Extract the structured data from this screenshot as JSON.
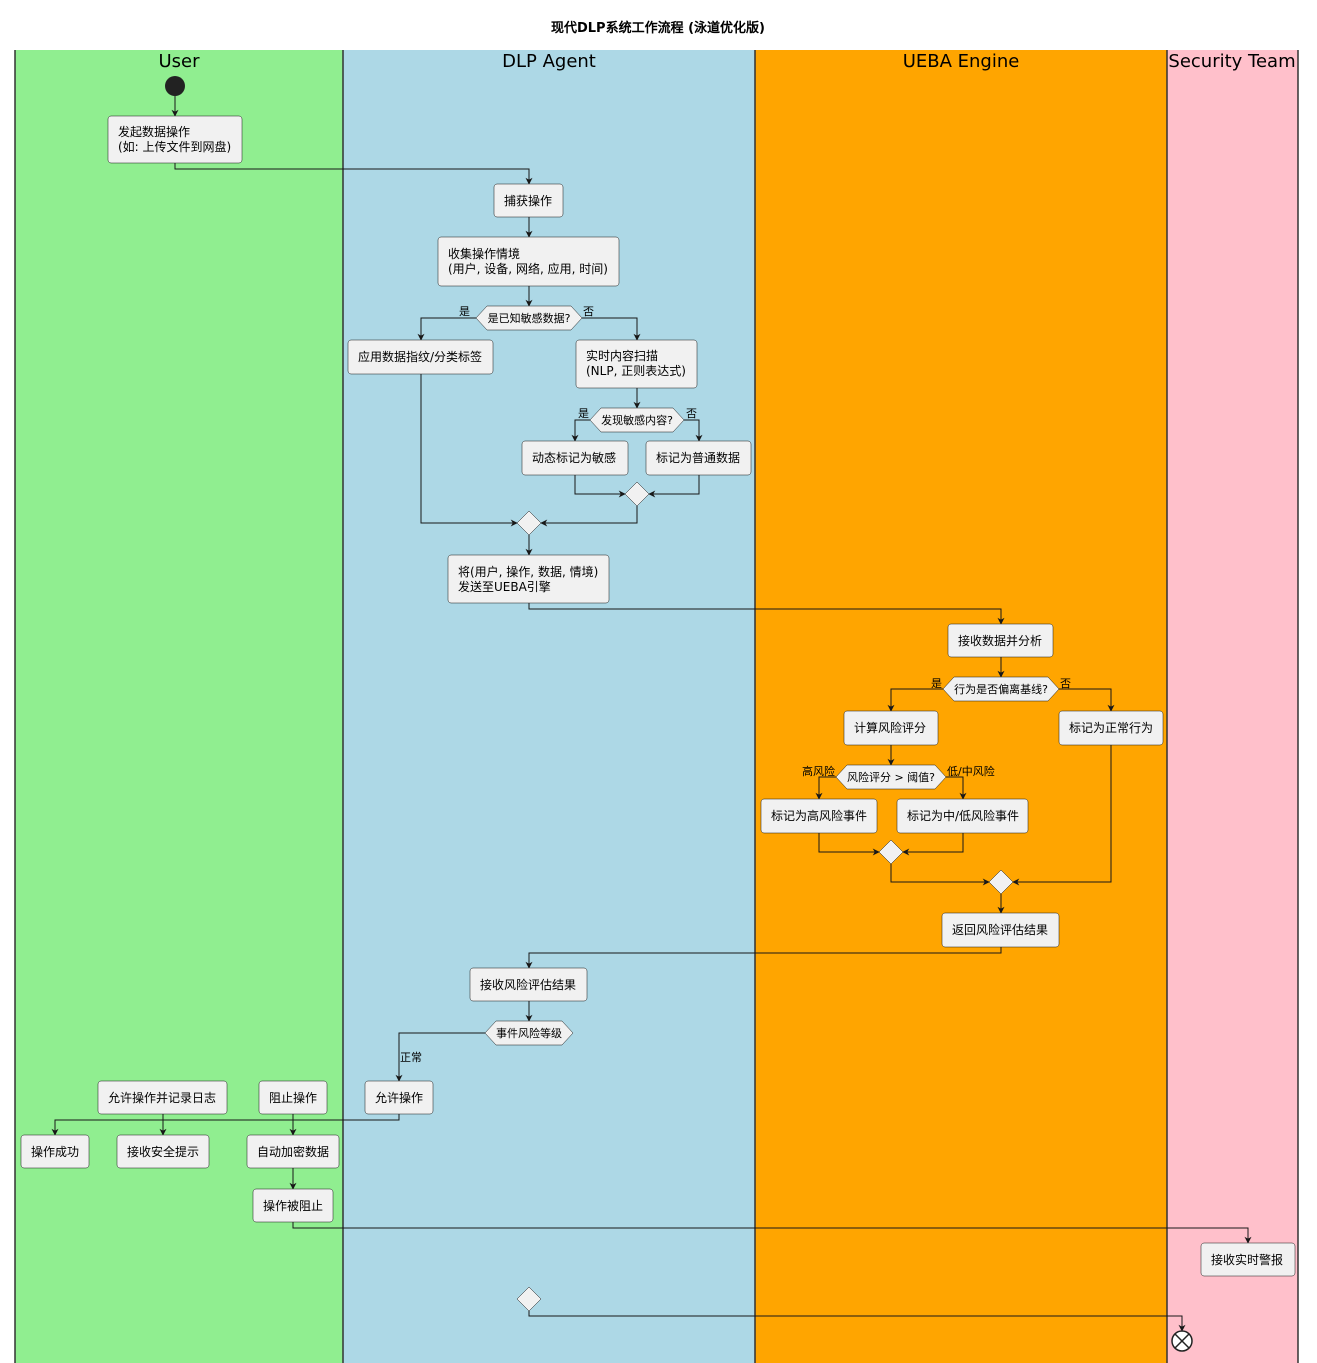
{
  "title": "现代DLP系统工作流程 (泳道优化版)",
  "lanes": [
    {
      "name": "User",
      "color": "#90EE90"
    },
    {
      "name": "DLP Agent",
      "color": "#ADD8E6"
    },
    {
      "name": "UEBA Engine",
      "color": "#FFA500"
    },
    {
      "name": "Security Team",
      "color": "#FFC0CB"
    }
  ],
  "nodes": {
    "initiate": [
      "发起数据操作",
      "(如: 上传文件到网盘)"
    ],
    "capture": [
      "捕获操作"
    ],
    "collect": [
      "收集操作情境",
      "(用户, 设备, 网络, 应用, 时间)"
    ],
    "fingerprint": [
      "应用数据指纹/分类标签"
    ],
    "scan": [
      "实时内容扫描",
      "(NLP, 正则表达式)"
    ],
    "mark_sensitive": [
      "动态标记为敏感"
    ],
    "mark_normal_data": [
      "标记为普通数据"
    ],
    "send_ueba": [
      "将(用户, 操作, 数据, 情境)",
      "发送至UEBA引擎"
    ],
    "receive_analyze": [
      "接收数据并分析"
    ],
    "calc_risk": [
      "计算风险评分"
    ],
    "mark_normal_behavior": [
      "标记为正常行为"
    ],
    "mark_high": [
      "标记为高风险事件"
    ],
    "mark_low": [
      "标记为中/低风险事件"
    ],
    "return_result": [
      "返回风险评估结果"
    ],
    "receive_result": [
      "接收风险评估结果"
    ],
    "allow": [
      "允许操作"
    ],
    "allow_log": [
      "允许操作并记录日志"
    ],
    "block": [
      "阻止操作"
    ],
    "success": [
      "操作成功"
    ],
    "receive_tip": [
      "接收安全提示"
    ],
    "encrypt": [
      "自动加密数据"
    ],
    "blocked": [
      "操作被阻止"
    ],
    "alert": [
      "接收实时警报"
    ]
  },
  "decisions": {
    "known_sensitive": {
      "text": "是已知敏感数据?",
      "yes": "是",
      "no": "否"
    },
    "found_sensitive": {
      "text": "发现敏感内容?",
      "yes": "是",
      "no": "否"
    },
    "deviate": {
      "text": "行为是否偏离基线?",
      "yes": "是",
      "no": "否"
    },
    "threshold": {
      "text": "风险评分 > 阈值?",
      "yes": "高风险",
      "no": "低/中风险"
    },
    "risk_level": {
      "text": "事件风险等级",
      "branch": "正常"
    }
  }
}
